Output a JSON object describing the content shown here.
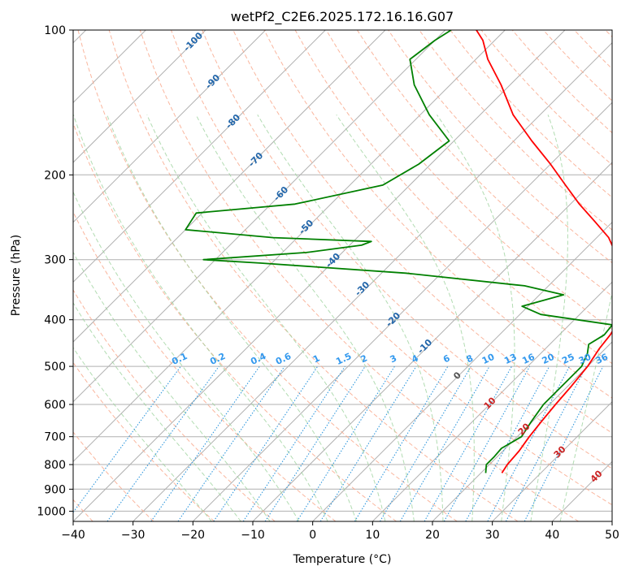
{
  "chart_data": {
    "type": "line",
    "title": "wetPf2_C2E6.2025.172.16.16.G07",
    "xlabel": "Temperature (°C)",
    "ylabel": "Pressure (hPa)",
    "xlim": [
      -40,
      50
    ],
    "ylim": [
      1050,
      100
    ],
    "y_scale": "log",
    "grid": true,
    "x_ticks": [
      -40,
      -30,
      -20,
      -10,
      0,
      10,
      20,
      30,
      40,
      50
    ],
    "y_ticks": [
      100,
      200,
      300,
      400,
      500,
      600,
      700,
      800,
      900,
      1000
    ],
    "skew_degrees": 45,
    "series": [
      {
        "color": "#ff0000",
        "points": [
          [
            833,
            23.5
          ],
          [
            800,
            23.0
          ],
          [
            750,
            22.7
          ],
          [
            700,
            22.0
          ],
          [
            650,
            21.5
          ],
          [
            600,
            21.0
          ],
          [
            550,
            20.6
          ],
          [
            500,
            20.0
          ],
          [
            460,
            19.0
          ],
          [
            430,
            18.5
          ],
          [
            400,
            17.5
          ],
          [
            380,
            16.5
          ],
          [
            360,
            14.8
          ],
          [
            330,
            11.5
          ],
          [
            300,
            7.3
          ],
          [
            270,
            2.0
          ],
          [
            250,
            -3.0
          ],
          [
            230,
            -8.5
          ],
          [
            210,
            -14.0
          ],
          [
            190,
            -20.0
          ],
          [
            170,
            -27.0
          ],
          [
            150,
            -34.5
          ],
          [
            130,
            -41.5
          ],
          [
            115,
            -48.0
          ],
          [
            105,
            -52.0
          ],
          [
            100,
            -54.8
          ]
        ]
      },
      {
        "color": "#008000",
        "points": [
          [
            833,
            20.8
          ],
          [
            800,
            19.5
          ],
          [
            770,
            19.5
          ],
          [
            740,
            19.3
          ],
          [
            700,
            20.7
          ],
          [
            650,
            19.8
          ],
          [
            600,
            19.0
          ],
          [
            550,
            19.0
          ],
          [
            500,
            19.0
          ],
          [
            470,
            17.8
          ],
          [
            450,
            16.5
          ],
          [
            430,
            17.5
          ],
          [
            410,
            17.2
          ],
          [
            390,
            3.5
          ],
          [
            375,
            -1.0
          ],
          [
            355,
            4.0
          ],
          [
            340,
            -4.0
          ],
          [
            320,
            -26.0
          ],
          [
            305,
            -52.0
          ],
          [
            300,
            -62.0
          ],
          [
            290,
            -46.0
          ],
          [
            280,
            -38.0
          ],
          [
            275,
            -37.0
          ],
          [
            270,
            -54.0
          ],
          [
            260,
            -70.0
          ],
          [
            240,
            -71.0
          ],
          [
            230,
            -56.0
          ],
          [
            210,
            -44.5
          ],
          [
            190,
            -42.0
          ],
          [
            170,
            -40.8
          ],
          [
            150,
            -48.5
          ],
          [
            130,
            -56.0
          ],
          [
            115,
            -61.0
          ],
          [
            105,
            -60.0
          ],
          [
            100,
            -59.0
          ]
        ]
      }
    ],
    "dry_adiabat_labels": [
      "-100",
      "-90",
      "-80",
      "-70",
      "-60",
      "-50",
      "-40",
      "-30",
      "-20",
      "-10",
      "0",
      "10",
      "20",
      "30",
      "40"
    ],
    "mixing_ratio_labels": [
      "0.1",
      "0.2",
      "0.4",
      "0.6",
      "1",
      "1.5",
      "2",
      "3",
      "4",
      "6",
      "8",
      "10",
      "13",
      "16",
      "20",
      "25",
      "30",
      "36"
    ],
    "mixing_ratio_values": [
      0.1,
      0.2,
      0.4,
      0.6,
      1,
      1.5,
      2,
      3,
      4,
      6,
      8,
      10,
      13,
      16,
      20,
      25,
      30,
      36
    ],
    "colors": {
      "isotherm": "#b0b0b0",
      "dry_adiabat": "#f9a98d",
      "moist_adiabat": "#9fd39f",
      "mixing_ratio": "#3399dd",
      "dry_label": "#2266aa",
      "warm_label": "#cc2222",
      "zero_label": "#555555",
      "mr_label": "#3399ee"
    }
  }
}
